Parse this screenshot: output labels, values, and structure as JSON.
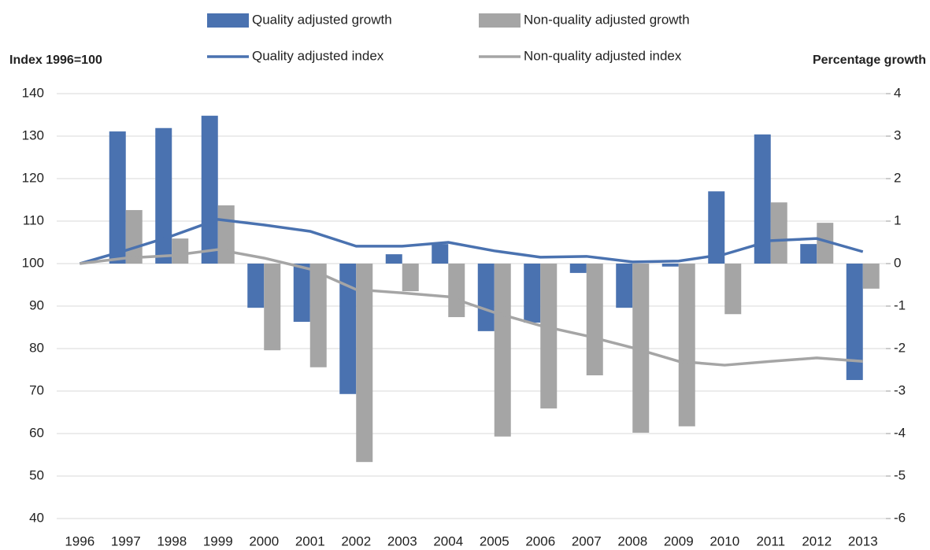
{
  "chart_data": {
    "type": "combo",
    "y_label": "Index 1996=100",
    "y2_label": "Percentage growth",
    "categories": [
      "1996",
      "1997",
      "1998",
      "1999",
      "2000",
      "2001",
      "2002",
      "2003",
      "2004",
      "2005",
      "2006",
      "2007",
      "2008",
      "2009",
      "2010",
      "2011",
      "2012",
      "2013"
    ],
    "ylim": [
      40,
      140
    ],
    "yticks": [
      40,
      50,
      60,
      70,
      80,
      90,
      100,
      110,
      120,
      130,
      140
    ],
    "y2lim": [
      -6,
      4
    ],
    "y2ticks": [
      -6,
      -5,
      -4,
      -3,
      -2,
      -1,
      0,
      1,
      2,
      3,
      4
    ],
    "grid": true,
    "series": [
      {
        "name": "Quality adjusted growth",
        "type": "bar",
        "axis": "y2",
        "color": "#4a72b0",
        "values": [
          null,
          3.11,
          3.19,
          3.48,
          -1.04,
          -1.37,
          -3.07,
          0.22,
          0.46,
          -1.59,
          -1.39,
          -0.22,
          -1.04,
          -0.07,
          1.7,
          3.04,
          0.46,
          -2.74
        ]
      },
      {
        "name": "Non-quality adjusted growth",
        "type": "bar",
        "axis": "y2",
        "color": "#a5a5a5",
        "values": [
          null,
          1.26,
          0.59,
          1.37,
          -2.04,
          -2.44,
          -4.67,
          -0.65,
          -1.26,
          -4.07,
          -3.41,
          -2.63,
          -3.98,
          -3.83,
          -1.19,
          1.44,
          0.96,
          -0.59
        ]
      },
      {
        "name": "Quality adjusted index",
        "type": "line",
        "color": "#4a72b0",
        "values": [
          100,
          103.1,
          106.5,
          110.4,
          109.1,
          107.6,
          104.1,
          104.1,
          105,
          103,
          101.5,
          101.7,
          100.4,
          100.6,
          102.2,
          105.4,
          105.9,
          102.8
        ]
      },
      {
        "name": "Non-quality adjusted index",
        "type": "line",
        "color": "#a5a5a5",
        "values": [
          100,
          101.3,
          101.9,
          103.3,
          101.3,
          98.7,
          93.9,
          93.1,
          92.2,
          88.5,
          85.4,
          83,
          80.2,
          77,
          76.1,
          77,
          77.8,
          77
        ]
      }
    ]
  }
}
